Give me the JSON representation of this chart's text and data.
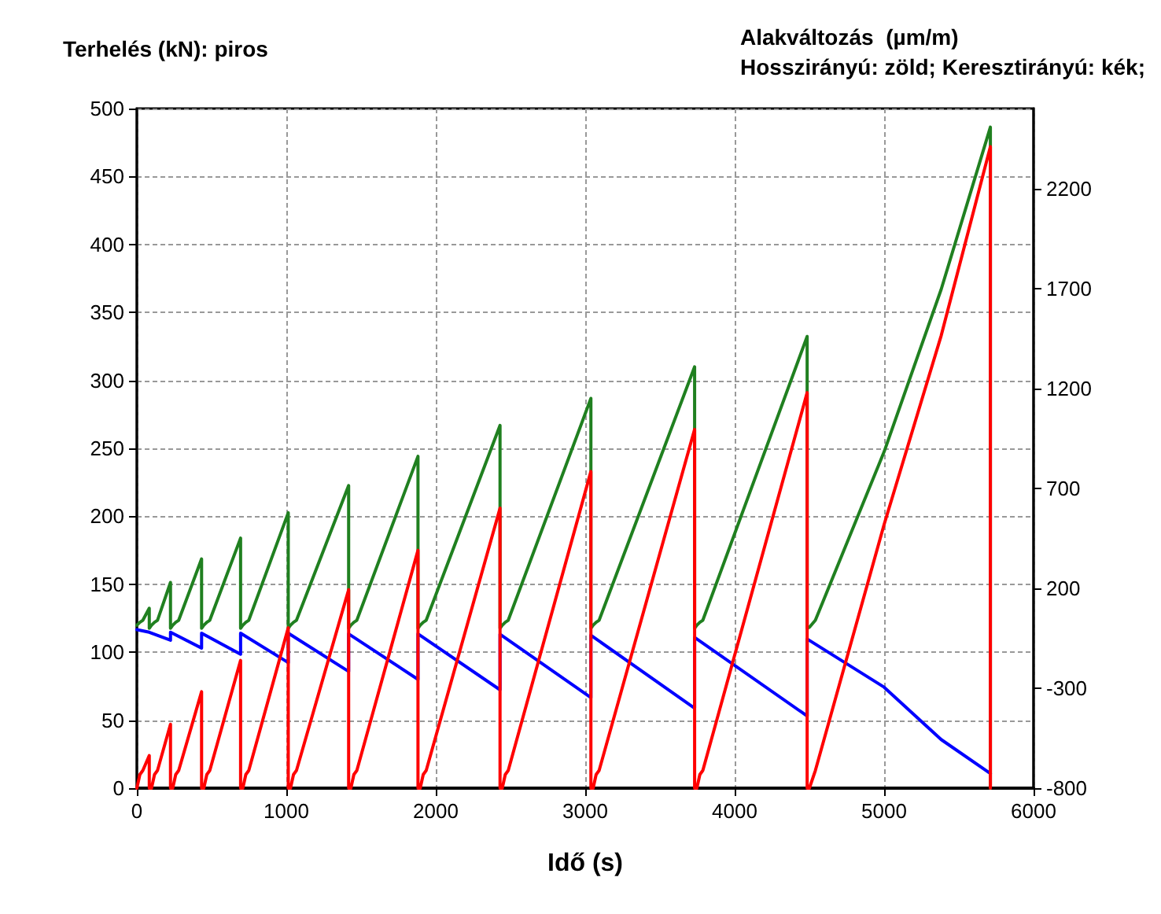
{
  "chart_data": {
    "type": "line",
    "ylabel": "Terhelés (kN): piros",
    "y2label": "Alakváltozás  (µm/m)\nHosszirányú: zöld; Keresztirányú: kék;",
    "xlabel": "Idő (s)",
    "xlim": [
      0,
      6000
    ],
    "xticks": [
      0,
      1000,
      2000,
      3000,
      4000,
      5000,
      6000
    ],
    "ylim": [
      0,
      500
    ],
    "yticks": [
      0,
      50,
      100,
      150,
      200,
      250,
      300,
      350,
      400,
      450,
      500
    ],
    "y2lim": [
      -800,
      2600
    ],
    "y2ticks": [
      -800,
      -300,
      200,
      700,
      1200,
      1700,
      2200
    ],
    "grid": true,
    "line_style": "solid",
    "marker": "none",
    "series": [
      {
        "color": "#ff0000",
        "x": [
          0,
          20,
          40,
          83,
          83,
          98,
          118,
          138,
          225,
          225,
          240,
          260,
          280,
          433,
          433,
          448,
          468,
          488,
          694,
          694,
          709,
          729,
          749,
          1013,
          1013,
          1028,
          1048,
          1068,
          1417,
          1417,
          1432,
          1452,
          1472,
          1881,
          1881,
          1896,
          1916,
          1936,
          2430,
          2430,
          2445,
          2465,
          2485,
          3038,
          3038,
          3053,
          3073,
          3093,
          3732,
          3732,
          3747,
          3767,
          3787,
          4485,
          4485,
          4500,
          4540,
          5000,
          5382,
          5711,
          5711
        ],
        "values": [
          0,
          10,
          13,
          24,
          0,
          0,
          10,
          13,
          47,
          0,
          0,
          10,
          13,
          71,
          0,
          0,
          10,
          13,
          94,
          0,
          0,
          10,
          13,
          118,
          0,
          0,
          10,
          13,
          146,
          0,
          0,
          10,
          13,
          175,
          0,
          0,
          10,
          13,
          206,
          0,
          0,
          10,
          13,
          233,
          0,
          0,
          10,
          13,
          264,
          0,
          0,
          10,
          13,
          291,
          0,
          0,
          13,
          194,
          333,
          472,
          0
        ]
      },
      {
        "color": "#208020",
        "axis": "y2",
        "x": [
          0,
          20,
          40,
          83,
          83,
          98,
          118,
          138,
          225,
          225,
          240,
          260,
          280,
          433,
          433,
          448,
          468,
          488,
          694,
          694,
          709,
          729,
          749,
          1013,
          1013,
          1028,
          1048,
          1068,
          1417,
          1417,
          1432,
          1452,
          1472,
          1881,
          1881,
          1896,
          1916,
          1936,
          2430,
          2430,
          2445,
          2465,
          2485,
          3038,
          3038,
          3053,
          3073,
          3093,
          3732,
          3732,
          3747,
          3767,
          3787,
          4485,
          4485,
          4500,
          4540,
          5000,
          5382,
          5711,
          5711
        ],
        "values": [
          15,
          30,
          40,
          100,
          0,
          15,
          30,
          40,
          229,
          0,
          15,
          30,
          40,
          347,
          0,
          15,
          30,
          40,
          451,
          0,
          15,
          30,
          40,
          578,
          0,
          15,
          30,
          40,
          714,
          0,
          15,
          30,
          40,
          860,
          0,
          15,
          30,
          40,
          1015,
          0,
          15,
          30,
          40,
          1150,
          0,
          15,
          30,
          40,
          1308,
          0,
          15,
          30,
          40,
          1460,
          0,
          5,
          40,
          883,
          1696,
          2507,
          -800
        ]
      },
      {
        "color": "#0000ff",
        "axis": "y2",
        "x": [
          0,
          83,
          83,
          225,
          225,
          433,
          433,
          694,
          694,
          1013,
          1013,
          1417,
          1417,
          1881,
          1881,
          2430,
          2430,
          3038,
          3038,
          3732,
          3732,
          4485,
          4485,
          5000,
          5382,
          5711
        ],
        "values": [
          -7,
          -20,
          -20,
          -60,
          -20,
          -99,
          -25,
          -130,
          -25,
          -172,
          -25,
          -216,
          -28,
          -256,
          -28,
          -308,
          -30,
          -347,
          -35,
          -400,
          -46,
          -439,
          -54,
          -295,
          -557,
          -727
        ]
      }
    ]
  }
}
